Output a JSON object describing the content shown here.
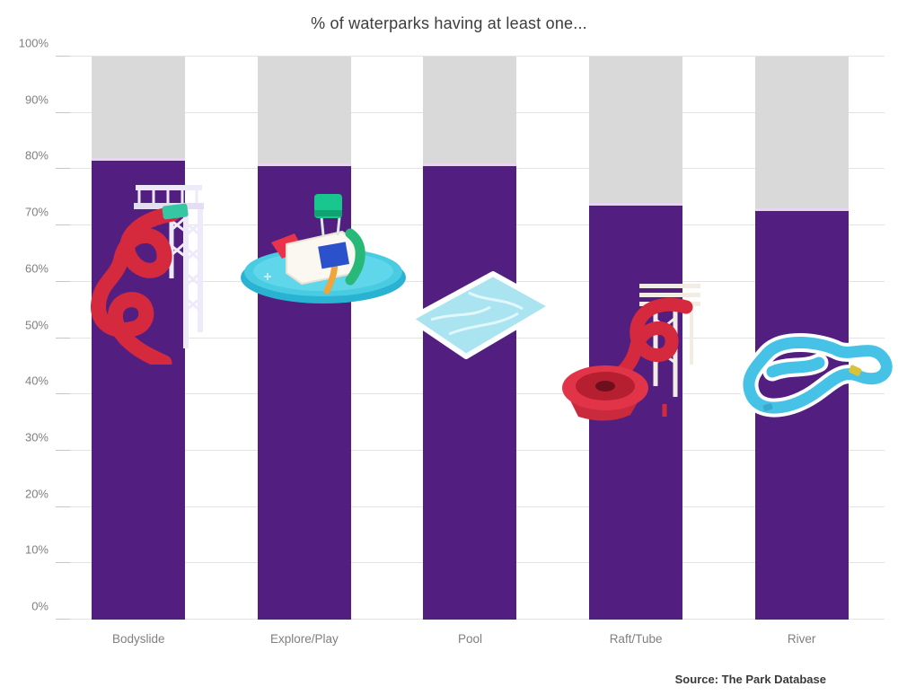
{
  "chart_data": {
    "type": "bar",
    "title": "% of waterparks having at least one...",
    "categories": [
      "Bodyslide",
      "Explore/Play",
      "Pool",
      "Raft/Tube",
      "River"
    ],
    "values": [
      82,
      81,
      81,
      74,
      73
    ],
    "xlabel": "",
    "ylabel": "",
    "ylim": [
      0,
      100
    ],
    "ytick_step": 10,
    "ytick_labels": [
      "0%",
      "10%",
      "20%",
      "30%",
      "40%",
      "50%",
      "60%",
      "70%",
      "80%",
      "90%",
      "100%"
    ],
    "grid": true,
    "legend_position": "none",
    "bar_color": "#521f80",
    "remainder_color": "#d9d9d9",
    "bar_top_accent_color": "#e7d5f1",
    "gridline_color": "#e3e3e3",
    "source": "Source: The Park Database",
    "icons": [
      "bodyslide-icon",
      "explore-play-icon",
      "pool-icon",
      "raft-tube-icon",
      "river-icon"
    ]
  }
}
